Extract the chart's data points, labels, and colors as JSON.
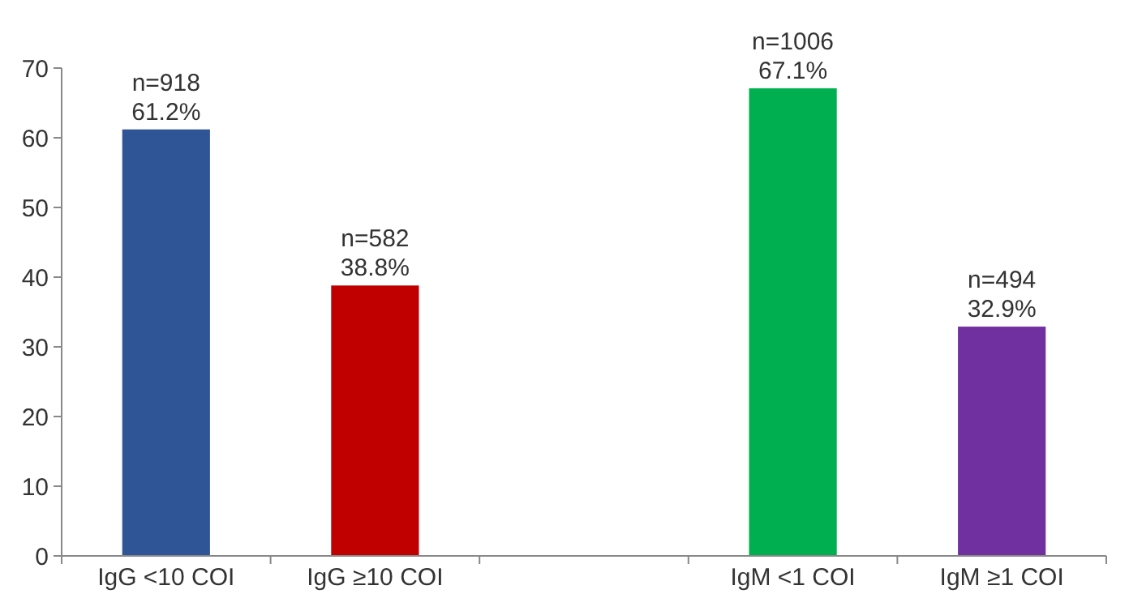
{
  "chart_data": {
    "type": "bar",
    "categories": [
      "IgG <10 COI",
      "IgG ≥10 COI",
      null,
      "IgM <1 COI",
      "IgM ≥1 COI"
    ],
    "values": [
      61.2,
      38.8,
      null,
      67.1,
      32.9
    ],
    "colors": [
      "#2f5597",
      "#c00000",
      null,
      "#00b050",
      "#7030a0"
    ],
    "value_labels": [
      "n=918\n61.2%",
      "n=582\n38.8%",
      null,
      "n=1006\n67.1%",
      "n=494\n32.9%"
    ],
    "ylim": [
      0,
      70
    ],
    "yticks": [
      0,
      10,
      20,
      30,
      40,
      50,
      60,
      70
    ],
    "grid": false
  }
}
